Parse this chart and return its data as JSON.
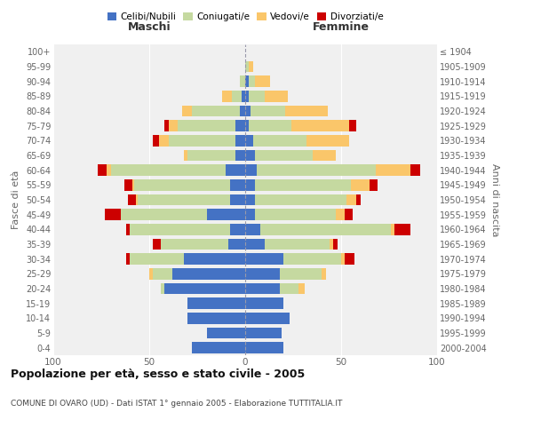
{
  "age_groups": [
    "0-4",
    "5-9",
    "10-14",
    "15-19",
    "20-24",
    "25-29",
    "30-34",
    "35-39",
    "40-44",
    "45-49",
    "50-54",
    "55-59",
    "60-64",
    "65-69",
    "70-74",
    "75-79",
    "80-84",
    "85-89",
    "90-94",
    "95-99",
    "100+"
  ],
  "birth_years": [
    "2000-2004",
    "1995-1999",
    "1990-1994",
    "1985-1989",
    "1980-1984",
    "1975-1979",
    "1970-1974",
    "1965-1969",
    "1960-1964",
    "1955-1959",
    "1950-1954",
    "1945-1949",
    "1940-1944",
    "1935-1939",
    "1930-1934",
    "1925-1929",
    "1920-1924",
    "1915-1919",
    "1910-1914",
    "1905-1909",
    "≤ 1904"
  ],
  "maschi": {
    "celibi": [
      28,
      20,
      30,
      30,
      42,
      38,
      32,
      9,
      8,
      20,
      8,
      8,
      10,
      5,
      5,
      5,
      3,
      2,
      0,
      0,
      0
    ],
    "coniugati": [
      0,
      0,
      0,
      0,
      2,
      10,
      28,
      35,
      52,
      45,
      48,
      50,
      60,
      25,
      35,
      30,
      25,
      5,
      3,
      0,
      0
    ],
    "vedovi": [
      0,
      0,
      0,
      0,
      0,
      2,
      0,
      0,
      0,
      0,
      1,
      1,
      2,
      2,
      5,
      5,
      5,
      5,
      0,
      0,
      0
    ],
    "divorziati": [
      0,
      0,
      0,
      0,
      0,
      0,
      2,
      4,
      2,
      8,
      4,
      4,
      5,
      0,
      3,
      2,
      0,
      0,
      0,
      0,
      0
    ]
  },
  "femmine": {
    "nubili": [
      20,
      19,
      23,
      20,
      18,
      18,
      20,
      10,
      8,
      5,
      5,
      5,
      6,
      5,
      4,
      2,
      3,
      2,
      2,
      0,
      0
    ],
    "coniugate": [
      0,
      0,
      0,
      0,
      10,
      22,
      30,
      34,
      68,
      42,
      48,
      50,
      62,
      30,
      28,
      22,
      18,
      8,
      3,
      2,
      0
    ],
    "vedove": [
      0,
      0,
      0,
      0,
      3,
      2,
      2,
      2,
      2,
      5,
      5,
      10,
      18,
      12,
      22,
      30,
      22,
      12,
      8,
      2,
      0
    ],
    "divorziate": [
      0,
      0,
      0,
      0,
      0,
      0,
      5,
      2,
      8,
      4,
      2,
      4,
      5,
      0,
      0,
      4,
      0,
      0,
      0,
      0,
      0
    ]
  },
  "colors": {
    "celibi": "#4472C4",
    "coniugati": "#C5D9A0",
    "vedovi": "#FAC66A",
    "divorziati": "#CC0000"
  },
  "title": "Popolazione per età, sesso e stato civile - 2005",
  "subtitle": "COMUNE DI OVARO (UD) - Dati ISTAT 1° gennaio 2005 - Elaborazione TUTTITALIA.IT",
  "xlabel_left": "Maschi",
  "xlabel_right": "Femmine",
  "ylabel_left": "Fasce di età",
  "ylabel_right": "Anni di nascita",
  "xlim": 100,
  "background_color": "#ffffff",
  "plot_bg": "#f0f0f0",
  "legend_labels": [
    "Celibi/Nubili",
    "Coniugati/e",
    "Vedovi/e",
    "Divorziati/e"
  ]
}
